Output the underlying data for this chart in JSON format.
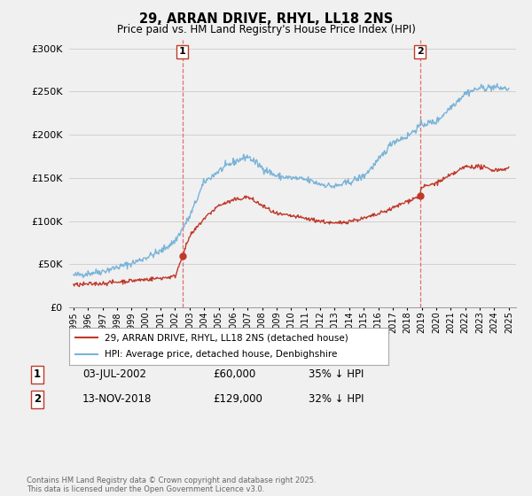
{
  "title": "29, ARRAN DRIVE, RHYL, LL18 2NS",
  "subtitle": "Price paid vs. HM Land Registry's House Price Index (HPI)",
  "ylim": [
    0,
    310000
  ],
  "yticks": [
    0,
    50000,
    100000,
    150000,
    200000,
    250000,
    300000
  ],
  "xlabel_start_year": 1995,
  "xlabel_end_year": 2025,
  "marker1_date": 2002.51,
  "marker1_price": 60000,
  "marker2_date": 2018.87,
  "marker2_price": 129000,
  "line1_color": "#c0392b",
  "line2_color": "#7ab3d8",
  "marker_line_color": "#e07070",
  "background_color": "#f0f0f0",
  "grid_color": "#cccccc",
  "legend1_label": "29, ARRAN DRIVE, RHYL, LL18 2NS (detached house)",
  "legend2_label": "HPI: Average price, detached house, Denbighshire",
  "marker1_text": "03-JUL-2002",
  "marker1_amount": "£60,000",
  "marker1_hpi": "35% ↓ HPI",
  "marker2_text": "13-NOV-2018",
  "marker2_amount": "£129,000",
  "marker2_hpi": "32% ↓ HPI",
  "footer": "Contains HM Land Registry data © Crown copyright and database right 2025.\nThis data is licensed under the Open Government Licence v3.0."
}
